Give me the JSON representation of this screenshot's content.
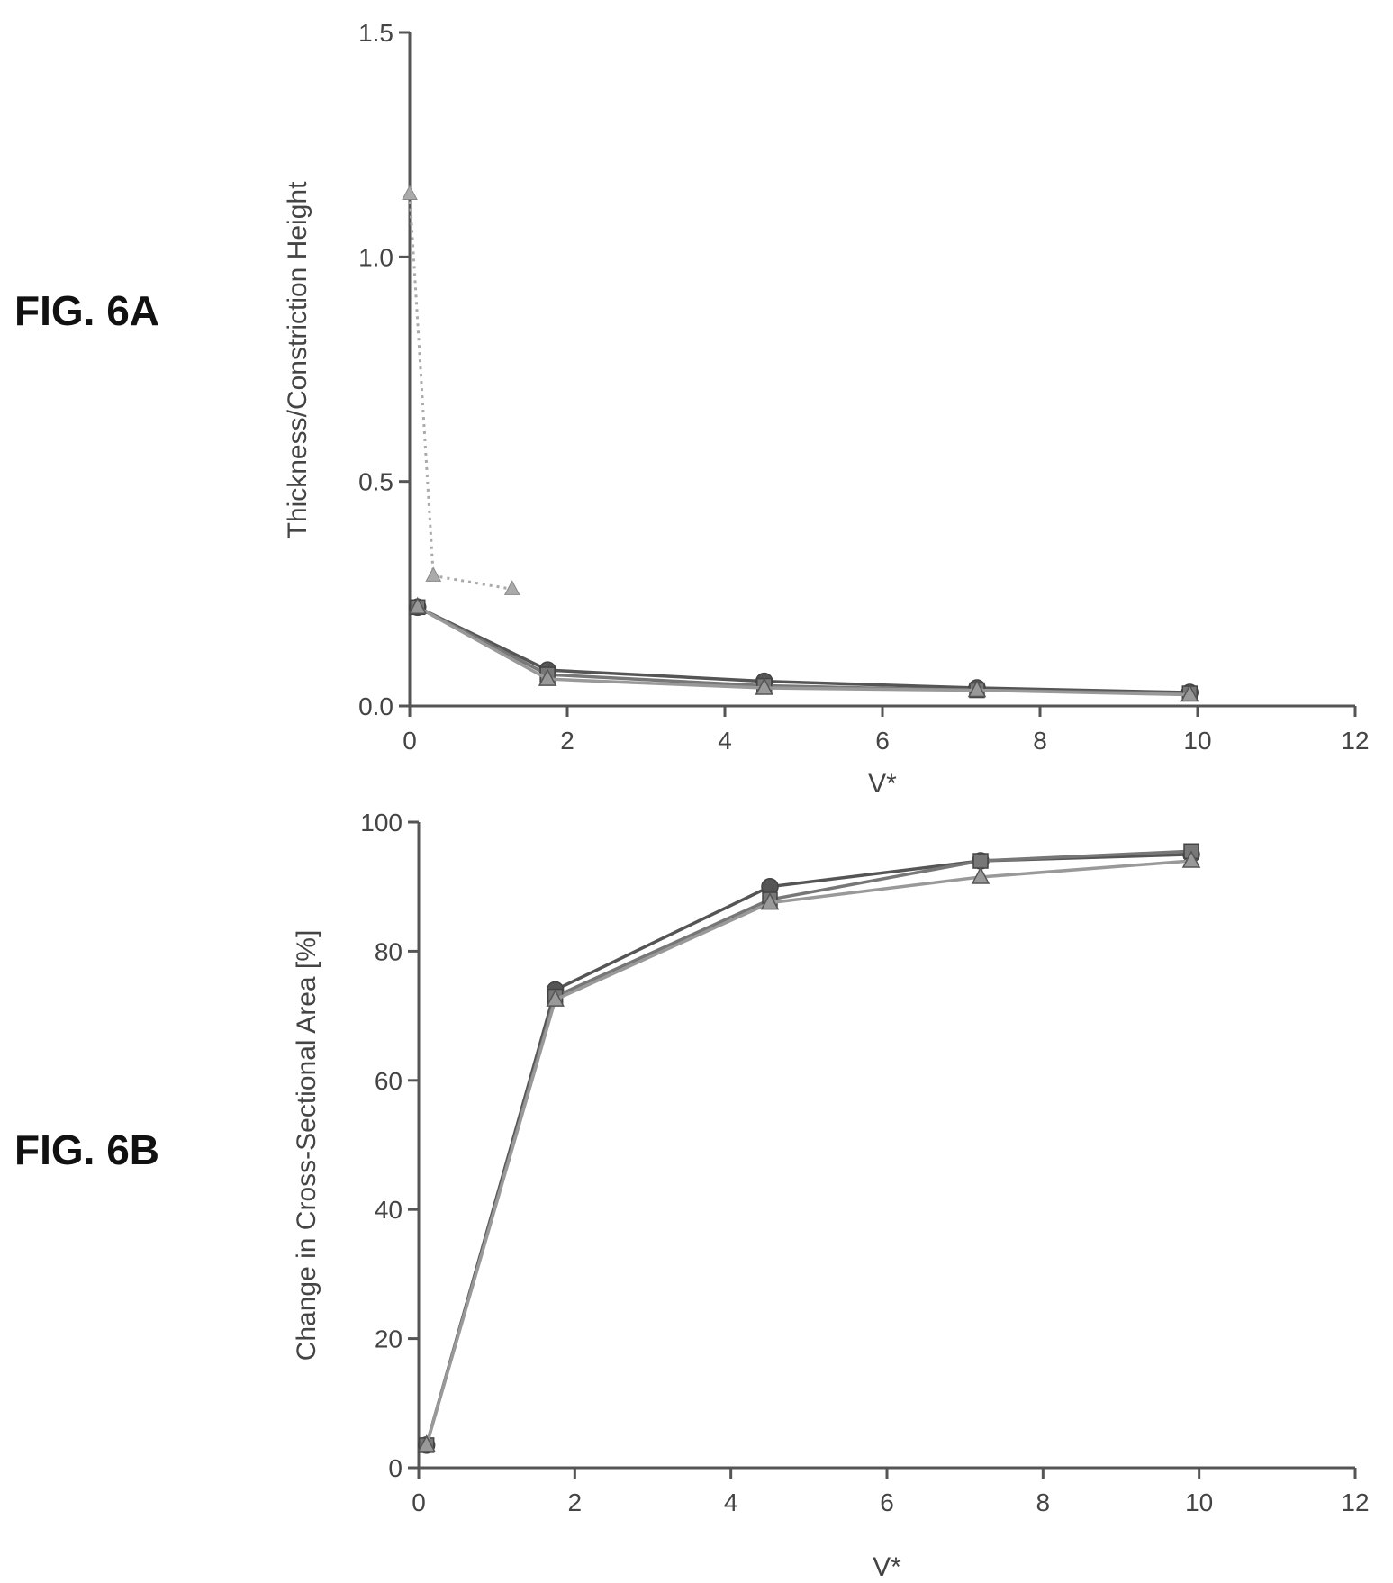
{
  "figure_labels": [
    "FIG. 6A",
    "FIG. 6B"
  ],
  "colors": {
    "axis": "#555555",
    "series_dark": "#555555",
    "series_mid": "#777777",
    "series_light": "#999999",
    "dotted": "#aaaaaa",
    "text": "#444444"
  },
  "chart_data": [
    {
      "type": "line",
      "title": "",
      "xlabel": "V*",
      "ylabel": "Thickness/Constriction Height",
      "xlim": [
        0,
        12
      ],
      "ylim": [
        0,
        1.5
      ],
      "xticks": [
        "0",
        "2",
        "4",
        "6",
        "8",
        "10",
        "12"
      ],
      "yticks": [
        "0.0",
        "0.5",
        "1.0",
        "1.5"
      ],
      "series": [
        {
          "x": [
            0.1,
            1.75,
            4.5,
            7.2,
            9.9
          ],
          "y": [
            0.22,
            0.08,
            0.055,
            0.04,
            0.03
          ]
        },
        {
          "x": [
            0.1,
            1.75,
            4.5,
            7.2,
            9.9
          ],
          "y": [
            0.22,
            0.07,
            0.045,
            0.035,
            0.028
          ]
        },
        {
          "x": [
            0.1,
            1.75,
            4.5,
            7.2,
            9.9
          ],
          "y": [
            0.22,
            0.06,
            0.04,
            0.035,
            0.025
          ]
        },
        {
          "x": [
            0.0,
            0.3,
            1.3
          ],
          "y": [
            1.14,
            0.29,
            0.26
          ],
          "style": "dotted"
        }
      ]
    },
    {
      "type": "line",
      "title": "",
      "xlabel": "V*",
      "ylabel": "Change in Cross-Sectional Area [%]",
      "xlim": [
        0,
        12
      ],
      "ylim": [
        0,
        100
      ],
      "xticks": [
        "0",
        "2",
        "4",
        "6",
        "8",
        "10",
        "12"
      ],
      "yticks": [
        "0",
        "20",
        "40",
        "60",
        "80",
        "100"
      ],
      "series": [
        {
          "x": [
            0.1,
            1.75,
            4.5,
            7.2,
            9.9
          ],
          "y": [
            3.5,
            74,
            90,
            94,
            95
          ]
        },
        {
          "x": [
            0.1,
            1.75,
            4.5,
            7.2,
            9.9
          ],
          "y": [
            3.5,
            73,
            88,
            94,
            95.5
          ]
        },
        {
          "x": [
            0.1,
            1.75,
            4.5,
            7.2,
            9.9
          ],
          "y": [
            3.5,
            72.5,
            87.5,
            91.5,
            94
          ]
        }
      ]
    }
  ]
}
